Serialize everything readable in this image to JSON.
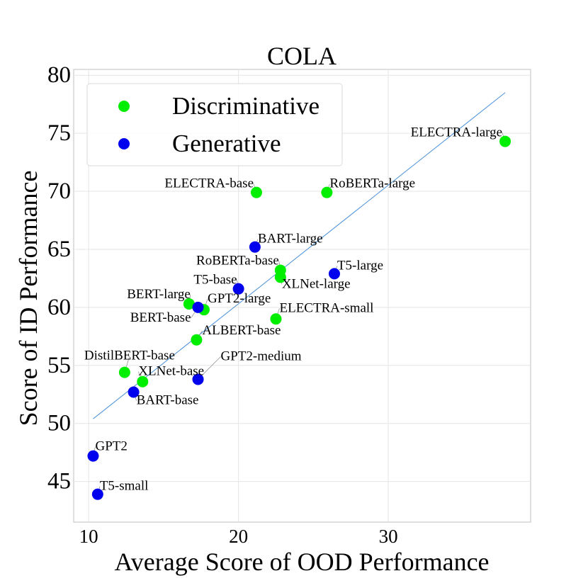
{
  "chart_data": {
    "type": "scatter",
    "title": "COLA",
    "xlabel": "Average Score of OOD Performance",
    "ylabel": "Score of ID Performance",
    "xlim": [
      9,
      39.5
    ],
    "ylim": [
      41.5,
      80.5
    ],
    "xticks": [
      10,
      20,
      30
    ],
    "yticks": [
      45,
      50,
      55,
      60,
      65,
      70,
      75,
      80
    ],
    "grid": true,
    "legend": {
      "placement": "top-left"
    },
    "trendline": {
      "x": [
        10.3,
        37.8
      ],
      "y": [
        50.4,
        78.5
      ],
      "color": "#4a90d9"
    },
    "series": [
      {
        "name": "Discriminative",
        "color": "#00ee00",
        "points": [
          {
            "label": "ELECTRA-large",
            "x": 37.8,
            "y": 74.3
          },
          {
            "label": "ELECTRA-base",
            "x": 21.2,
            "y": 69.9
          },
          {
            "label": "RoBERTa-large",
            "x": 25.9,
            "y": 69.9
          },
          {
            "label": "RoBERTa-base",
            "x": 22.8,
            "y": 63.2
          },
          {
            "label": "XLNet-large",
            "x": 22.8,
            "y": 62.6
          },
          {
            "label": "BERT-large",
            "x": 16.7,
            "y": 60.3
          },
          {
            "label": "GPT2-large",
            "x": 17.7,
            "y": 59.8
          },
          {
            "label": "ELECTRA-small",
            "x": 22.5,
            "y": 59.0
          },
          {
            "label": "ALBERT-base",
            "x": 17.2,
            "y": 57.2
          },
          {
            "label": "DistilBERT-base",
            "x": 12.4,
            "y": 54.4
          },
          {
            "label": "XLNet-base",
            "x": 13.6,
            "y": 53.6
          }
        ]
      },
      {
        "name": "Generative",
        "color": "#0000ee",
        "points": [
          {
            "label": "BART-large",
            "x": 21.1,
            "y": 65.2
          },
          {
            "label": "T5-large",
            "x": 26.4,
            "y": 62.9
          },
          {
            "label": "T5-base",
            "x": 20.0,
            "y": 61.6
          },
          {
            "label": "BERT-base",
            "x": 17.3,
            "y": 60.0
          },
          {
            "label": "GPT2-medium",
            "x": 17.3,
            "y": 53.8
          },
          {
            "label": "BART-base",
            "x": 13.0,
            "y": 52.7
          },
          {
            "label": "GPT2",
            "x": 10.3,
            "y": 47.2
          },
          {
            "label": "T5-small",
            "x": 10.6,
            "y": 43.9
          }
        ]
      }
    ]
  }
}
